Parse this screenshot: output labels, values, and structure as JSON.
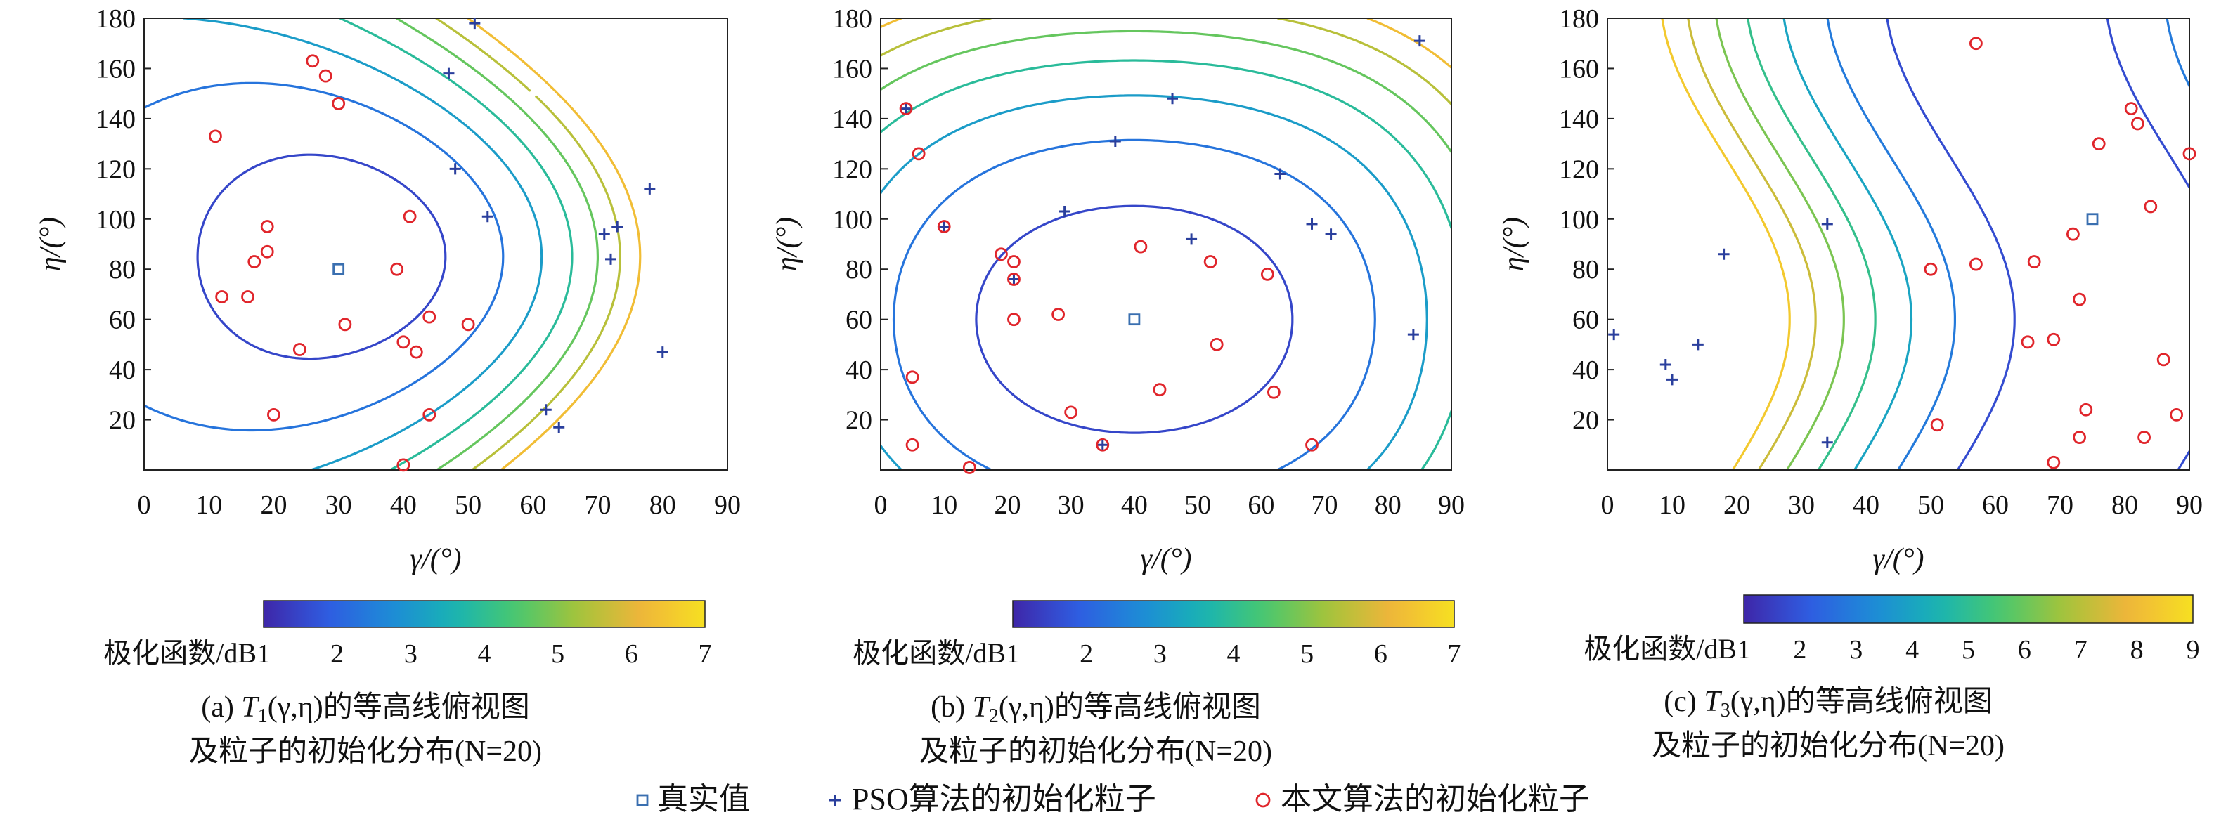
{
  "chart_data": [
    {
      "type": "contour",
      "panel": "a",
      "caption_parts": {
        "prefix": "(a) ",
        "T": "T",
        "sub": "1",
        "args": "(γ,η)的等高线俯视图"
      },
      "caption_line2": "及粒子的初始化分布(N=20)",
      "xlabel": "γ/(°)",
      "ylabel": "η/(°)",
      "xlim": [
        0,
        90
      ],
      "ylim": [
        0,
        180
      ],
      "xticks": [
        0,
        10,
        20,
        30,
        40,
        50,
        60,
        70,
        80,
        90
      ],
      "yticks": [
        20,
        40,
        60,
        80,
        100,
        120,
        140,
        160,
        180
      ],
      "colorbar": {
        "label": "极化函数/dB",
        "range": [
          1,
          7
        ],
        "ticks": [
          1,
          2,
          3,
          4,
          5,
          6,
          7
        ]
      },
      "levels": [
        1.5,
        2.3,
        3.1,
        3.9,
        4.7,
        5.5,
        6.3
      ],
      "true_value": [
        30,
        80
      ],
      "pso_particles": [
        [
          47,
          158
        ],
        [
          51,
          178
        ],
        [
          48,
          120
        ],
        [
          53,
          101
        ],
        [
          71,
          94
        ],
        [
          73,
          97
        ],
        [
          72,
          84
        ],
        [
          78,
          112
        ],
        [
          80,
          47
        ],
        [
          62,
          24
        ],
        [
          64,
          17
        ]
      ],
      "proposed_particles": [
        [
          11,
          133
        ],
        [
          26,
          163
        ],
        [
          28,
          157
        ],
        [
          30,
          146
        ],
        [
          19,
          97
        ],
        [
          17,
          83
        ],
        [
          19,
          87
        ],
        [
          12,
          69
        ],
        [
          16,
          69
        ],
        [
          24,
          48
        ],
        [
          20,
          22
        ],
        [
          31,
          58
        ],
        [
          39,
          80
        ],
        [
          41,
          101
        ],
        [
          40,
          51
        ],
        [
          42,
          47
        ],
        [
          44,
          61
        ],
        [
          50,
          58
        ],
        [
          44,
          22
        ],
        [
          40,
          2
        ]
      ]
    },
    {
      "type": "contour",
      "panel": "b",
      "caption_parts": {
        "prefix": "(b) ",
        "T": "T",
        "sub": "2",
        "args": "(γ,η)的等高线俯视图"
      },
      "caption_line2": "及粒子的初始化分布(N=20)",
      "xlabel": "γ/(°)",
      "ylabel": "η/(°)",
      "xlim": [
        0,
        90
      ],
      "ylim": [
        0,
        180
      ],
      "xticks": [
        0,
        10,
        20,
        30,
        40,
        50,
        60,
        70,
        80,
        90
      ],
      "yticks": [
        20,
        40,
        60,
        80,
        100,
        120,
        140,
        160,
        180
      ],
      "colorbar": {
        "label": "极化函数/dB",
        "range": [
          1,
          7
        ],
        "ticks": [
          1,
          2,
          3,
          4,
          5,
          6,
          7
        ]
      },
      "levels": [
        1.5,
        2.3,
        3.1,
        3.9,
        4.7,
        5.5,
        6.3
      ],
      "true_value": [
        40,
        60
      ],
      "pso_particles": [
        [
          37,
          131
        ],
        [
          46,
          148
        ],
        [
          29,
          103
        ],
        [
          49,
          92
        ],
        [
          63,
          118
        ],
        [
          68,
          98
        ],
        [
          71,
          94
        ],
        [
          85,
          171
        ],
        [
          84,
          54
        ],
        [
          35,
          10
        ],
        [
          21,
          76
        ],
        [
          10,
          97
        ],
        [
          4,
          144
        ]
      ],
      "proposed_particles": [
        [
          4,
          144
        ],
        [
          6,
          126
        ],
        [
          10,
          97
        ],
        [
          19,
          86
        ],
        [
          21,
          83
        ],
        [
          21,
          76
        ],
        [
          21,
          60
        ],
        [
          28,
          62
        ],
        [
          41,
          89
        ],
        [
          52,
          83
        ],
        [
          61,
          78
        ],
        [
          53,
          50
        ],
        [
          44,
          32
        ],
        [
          62,
          31
        ],
        [
          30,
          23
        ],
        [
          35,
          10
        ],
        [
          14,
          1
        ],
        [
          5,
          37
        ],
        [
          5,
          10
        ],
        [
          68,
          10
        ]
      ]
    },
    {
      "type": "contour",
      "panel": "c",
      "caption_parts": {
        "prefix": "(c) ",
        "T": "T",
        "sub": "3",
        "args": "(γ,η)的等高线俯视图"
      },
      "caption_line2": "及粒子的初始化分布(N=20)",
      "xlabel": "γ/(°)",
      "ylabel": "η/(°)",
      "xlim": [
        0,
        90
      ],
      "ylim": [
        0,
        180
      ],
      "xticks": [
        0,
        10,
        20,
        30,
        40,
        50,
        60,
        70,
        80,
        90
      ],
      "yticks": [
        20,
        40,
        60,
        80,
        100,
        120,
        140,
        160,
        180
      ],
      "colorbar": {
        "label": "极化函数/dB",
        "range": [
          1,
          9
        ],
        "ticks": [
          1,
          2,
          3,
          4,
          5,
          6,
          7,
          8,
          9
        ]
      },
      "levels": [
        1.8,
        2.9,
        4.0,
        5.1,
        6.2,
        7.3,
        8.4
      ],
      "true_value": [
        75,
        100
      ],
      "pso_particles": [
        [
          34,
          98
        ],
        [
          18,
          86
        ],
        [
          9,
          42
        ],
        [
          10,
          36
        ],
        [
          14,
          50
        ],
        [
          1,
          54
        ],
        [
          34,
          11
        ]
      ],
      "proposed_particles": [
        [
          57,
          170
        ],
        [
          81,
          144
        ],
        [
          82,
          138
        ],
        [
          76,
          130
        ],
        [
          90,
          126
        ],
        [
          72,
          94
        ],
        [
          84,
          105
        ],
        [
          50,
          80
        ],
        [
          57,
          82
        ],
        [
          66,
          83
        ],
        [
          73,
          68
        ],
        [
          65,
          51
        ],
        [
          69,
          52
        ],
        [
          86,
          44
        ],
        [
          74,
          24
        ],
        [
          73,
          13
        ],
        [
          83,
          13
        ],
        [
          88,
          22
        ],
        [
          69,
          3
        ],
        [
          51,
          18
        ]
      ]
    }
  ],
  "legend": {
    "true_label": "真实值",
    "pso_label": "PSO算法的初始化粒子",
    "proposed_label": "本文算法的初始化粒子"
  },
  "colors": {
    "pso": "#2a3f9d",
    "proposed": "#e0252b",
    "true": "#3a6fb0",
    "colormap": [
      "#3e26a8",
      "#2f5ce1",
      "#1e8ad8",
      "#18b3b4",
      "#48c86f",
      "#a5c33a",
      "#f0b53a",
      "#f6e021"
    ]
  }
}
